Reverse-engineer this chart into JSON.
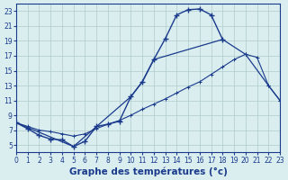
{
  "bg_color": "#daeef0",
  "line_color": "#1a3a8c",
  "grid_color": "#b0cccc",
  "xlabel": "Graphe des températures (°c)",
  "xlabel_fontsize": 7.5,
  "xmin": 0,
  "xmax": 23,
  "ymin": 4,
  "ymax": 24,
  "yticks": [
    5,
    7,
    9,
    11,
    13,
    15,
    17,
    19,
    21,
    23
  ],
  "xticks": [
    0,
    1,
    2,
    3,
    4,
    5,
    6,
    7,
    8,
    9,
    10,
    11,
    12,
    13,
    14,
    15,
    16,
    17,
    18,
    19,
    20,
    21,
    22,
    23
  ],
  "curve_main_x": [
    0,
    1,
    2,
    3,
    4,
    5,
    6,
    7,
    8,
    9,
    10,
    11,
    12,
    13,
    14,
    15,
    16,
    17,
    18
  ],
  "curve_main_y": [
    8.0,
    7.2,
    6.3,
    5.8,
    5.7,
    4.8,
    5.5,
    7.5,
    7.8,
    8.2,
    11.5,
    13.5,
    16.5,
    19.3,
    22.5,
    23.2,
    23.3,
    22.5,
    19.2
  ],
  "curve_slow_x": [
    0,
    1,
    2,
    3,
    4,
    5,
    6,
    7,
    8,
    9,
    10,
    11,
    12,
    13,
    14,
    15,
    16,
    17,
    18,
    19,
    20,
    21,
    22,
    23
  ],
  "curve_slow_y": [
    8.0,
    7.5,
    7.0,
    6.8,
    6.5,
    6.2,
    6.5,
    7.2,
    7.8,
    8.3,
    9.0,
    9.8,
    10.5,
    11.2,
    12.0,
    12.8,
    13.5,
    14.5,
    15.5,
    16.5,
    17.2,
    16.8,
    13.0,
    11.0
  ],
  "curve_poly_x": [
    0,
    5,
    10,
    11,
    12,
    18,
    20,
    22,
    23
  ],
  "curve_poly_y": [
    8.0,
    4.8,
    11.5,
    13.5,
    16.5,
    19.2,
    17.2,
    13.0,
    11.0
  ]
}
